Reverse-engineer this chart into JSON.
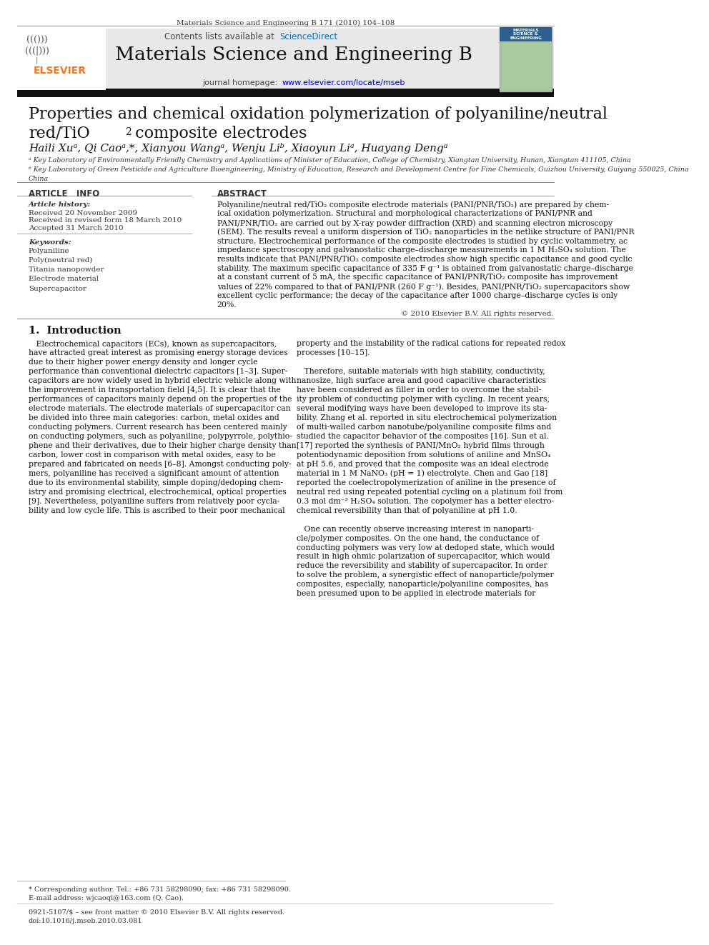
{
  "page_width": 9.92,
  "page_height": 13.23,
  "background_color": "#ffffff",
  "journal_header": "Materials Science and Engineering B 171 (2010) 104–108",
  "contents_line": "Contents lists available at ScienceDirect",
  "journal_name": "Materials Science and Engineering B",
  "journal_homepage": "journal homepage: www.elsevier.com/locate/mseb",
  "title_line1": "Properties and chemical oxidation polymerization of polyaniline/neutral",
  "title_line2": "red/TiO₂ composite electrodes",
  "authors": "Haili Xuᵃ, Qi Caoᵃ,*, Xianyou Wangᵃ, Wenju Liᵇ, Xiaoyun Liᵃ, Huayang Dengᵃ",
  "affiliation_a": "ᵃ Key Laboratory of Environmentally Friendly Chemistry and Applications of Minister of Education, College of Chemistry, Xiangtan University, Hunan, Xiangtan 411105, China",
  "affiliation_b": "ᵇ Key Laboratory of Green Pesticide and Agriculture Bioengineering, Ministry of Education, Research and Development Centre for Fine Chemicals, Guizhou University, Guiyang 550025, China",
  "article_info_header": "ARTICLE   INFO",
  "abstract_header": "ABSTRACT",
  "article_history_label": "Article history:",
  "received_1": "Received 20 November 2009",
  "received_2": "Received in revised form 18 March 2010",
  "accepted": "Accepted 31 March 2010",
  "keywords_label": "Keywords:",
  "kw1": "Polyaniline",
  "kw2": "Poly(neutral red)",
  "kw3": "Titania nanopowder",
  "kw4": "Electrode material",
  "kw5": "Supercapacitor",
  "copyright": "© 2010 Elsevier B.V. All rights reserved.",
  "intro_header": "1.  Introduction",
  "footer_note": "* Corresponding author. Tel.: +86 731 58298090; fax: +86 731 58298090.",
  "footer_email": "E-mail address: wjcaoqi@163.com (Q. Cao).",
  "footer_issn": "0921-5107/$ – see front matter © 2010 Elsevier B.V. All rights reserved.",
  "footer_doi": "doi:10.1016/j.mseb.2010.03.081",
  "header_band_color": "#1a1a2e",
  "elsevier_orange": "#f47920",
  "link_blue": "#0000cc",
  "sciencedirect_blue": "#0070c0",
  "section_header_bg": "#e8e8e8",
  "abstract_lines": [
    "Polyaniline/neutral red/TiO₂ composite electrode materials (PANI/PNR/TiO₂) are prepared by chem-",
    "ical oxidation polymerization. Structural and morphological characterizations of PANI/PNR and",
    "PANI/PNR/TiO₂ are carried out by X-ray powder diffraction (XRD) and scanning electron microscopy",
    "(SEM). The results reveal a uniform dispersion of TiO₂ nanoparticles in the netlike structure of PANI/PNR",
    "structure. Electrochemical performance of the composite electrodes is studied by cyclic voltammetry, ac",
    "impedance spectroscopy and galvanostatic charge–discharge measurements in 1 M H₂SO₄ solution. The",
    "results indicate that PANI/PNR/TiO₂ composite electrodes show high specific capacitance and good cyclic",
    "stability. The maximum specific capacitance of 335 F g⁻¹ is obtained from galvanostatic charge–discharge",
    "at a constant current of 5 mA, the specific capacitance of PANI/PNR/TiO₂ composite has improvement",
    "values of 22% compared to that of PANI/PNR (260 F g⁻¹). Besides, PANI/PNR/TiO₂ supercapacitors show",
    "excellent cyclic performance; the decay of the capacitance after 1000 charge–discharge cycles is only",
    "20%."
  ],
  "intro_col1": [
    "   Electrochemical capacitors (ECs), known as supercapacitors,",
    "have attracted great interest as promising energy storage devices",
    "due to their higher power energy density and longer cycle",
    "performance than conventional dielectric capacitors [1–3]. Super-",
    "capacitors are now widely used in hybrid electric vehicle along with",
    "the improvement in transportation field [4,5]. It is clear that the",
    "performances of capacitors mainly depend on the properties of the",
    "electrode materials. The electrode materials of supercapacitor can",
    "be divided into three main categories: carbon, metal oxides and",
    "conducting polymers. Current research has been centered mainly",
    "on conducting polymers, such as polyaniline, polypyrrole, polythio-",
    "phene and their derivatives, due to their higher charge density than",
    "carbon, lower cost in comparison with metal oxides, easy to be",
    "prepared and fabricated on needs [6–8]. Amongst conducting poly-",
    "mers, polyaniline has received a significant amount of attention",
    "due to its environmental stability, simple doping/dedoping chem-",
    "istry and promising electrical, electrochemical, optical properties",
    "[9]. Nevertheless, polyaniline suffers from relatively poor cycla-",
    "bility and low cycle life. This is ascribed to their poor mechanical"
  ],
  "intro_col2a": [
    "property and the instability of the radical cations for repeated redox",
    "processes [10–15]."
  ],
  "intro_col2b": [
    "   Therefore, suitable materials with high stability, conductivity,",
    "nanosize, high surface area and good capacitive characteristics",
    "have been considered as filler in order to overcome the stabil-",
    "ity problem of conducting polymer with cycling. In recent years,",
    "several modifying ways have been developed to improve its sta-",
    "bility. Zhang et al. reported in situ electrochemical polymerization",
    "of multi-walled carbon nanotube/polyaniline composite films and",
    "studied the capacitor behavior of the composites [16]. Sun et al.",
    "[17] reported the synthesis of PANI/MnO₂ hybrid films through",
    "potentiodynamic deposition from solutions of aniline and MnSO₄",
    "at pH 5.6, and proved that the composite was an ideal electrode",
    "material in 1 M NaNO₃ (pH = 1) electrolyte. Chen and Gao [18]",
    "reported the coelectropolymerization of aniline in the presence of",
    "neutral red using repeated potential cycling on a platinum foil from",
    "0.3 mol dm⁻³ H₂SO₄ solution. The copolymer has a better electro-",
    "chemical reversibility than that of polyaniline at pH 1.0."
  ],
  "intro_col2c": [
    "   One can recently observe increasing interest in nanoparti-",
    "cle/polymer composites. On the one hand, the conductance of",
    "conducting polymers was very low at dedoped state, which would",
    "result in high ohmic polarization of supercapacitor, which would",
    "reduce the reversibility and stability of supercapacitor. In order",
    "to solve the problem, a synergistic effect of nanoparticle/polymer",
    "composites, especially, nanoparticle/polyaniline composites, has",
    "been presumed upon to be applied in electrode materials for"
  ]
}
